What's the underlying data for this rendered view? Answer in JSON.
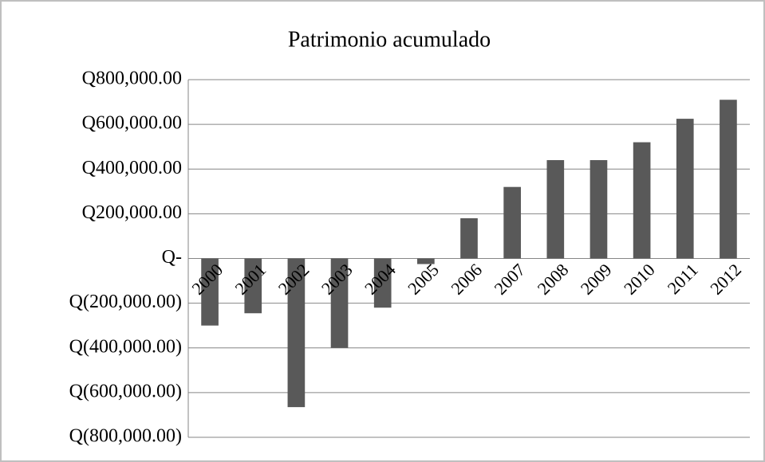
{
  "chart_data": {
    "type": "bar",
    "title": "Patrimonio  acumulado",
    "categories": [
      "2000",
      "2001",
      "2002",
      "2003",
      "2004",
      "2005",
      "2006",
      "2007",
      "2008",
      "2009",
      "2010",
      "2011",
      "2012"
    ],
    "values": [
      -300000,
      -245000,
      -665000,
      -400000,
      -220000,
      -25000,
      180000,
      320000,
      440000,
      440000,
      520000,
      625000,
      710000
    ],
    "color": "#595959",
    "ylim": [
      -800000,
      800000
    ],
    "yticks": [
      {
        "value": -800000,
        "label": "Q(800,000.00)"
      },
      {
        "value": -600000,
        "label": "Q(600,000.00)"
      },
      {
        "value": -400000,
        "label": "Q(400,000.00)"
      },
      {
        "value": -200000,
        "label": "Q(200,000.00)"
      },
      {
        "value": 0,
        "label": "Q-"
      },
      {
        "value": 200000,
        "label": "Q200,000.00"
      },
      {
        "value": 400000,
        "label": "Q400,000.00"
      },
      {
        "value": 600000,
        "label": "Q600,000.00"
      },
      {
        "value": 800000,
        "label": "Q800,000.00"
      }
    ],
    "grid": true
  }
}
